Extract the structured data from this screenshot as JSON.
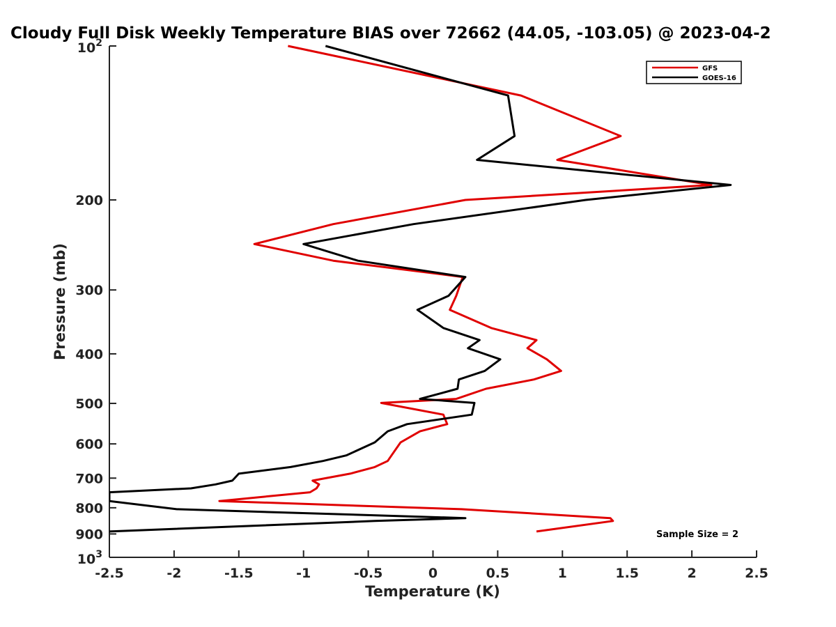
{
  "chart_data": {
    "type": "line",
    "title": "Cloudy Full Disk Weekly Temperature BIAS over 72662 (44.05, -103.05) @ 2023-04-2",
    "xlabel": "Temperature (K)",
    "ylabel": "Pressure (mb)",
    "xlim": [
      -2.5,
      2.5
    ],
    "ylim": [
      100,
      1000
    ],
    "y_scale": "log",
    "y_reversed": true,
    "grid": false,
    "legend_position": "top-right",
    "x_ticks": [
      {
        "value": -2.5,
        "label": "-2.5"
      },
      {
        "value": -2,
        "label": "-2"
      },
      {
        "value": -1.5,
        "label": "-1.5"
      },
      {
        "value": -1,
        "label": "-1"
      },
      {
        "value": -0.5,
        "label": "-0.5"
      },
      {
        "value": 0,
        "label": "0"
      },
      {
        "value": 0.5,
        "label": "0.5"
      },
      {
        "value": 1,
        "label": "1"
      },
      {
        "value": 1.5,
        "label": "1.5"
      },
      {
        "value": 2,
        "label": "2"
      },
      {
        "value": 2.5,
        "label": "2.5"
      }
    ],
    "y_ticks": [
      {
        "value": 100,
        "base": "10",
        "exp": "2"
      },
      {
        "value": 200,
        "label": "200"
      },
      {
        "value": 300,
        "label": "300"
      },
      {
        "value": 400,
        "label": "400"
      },
      {
        "value": 500,
        "label": "500"
      },
      {
        "value": 600,
        "label": "600"
      },
      {
        "value": 700,
        "label": "700"
      },
      {
        "value": 800,
        "label": "800"
      },
      {
        "value": 900,
        "label": "900"
      },
      {
        "value": 1000,
        "base": "10",
        "exp": "3"
      }
    ],
    "series": [
      {
        "name": "GFS",
        "color": "#e00000",
        "points": [
          [
            -1.12,
            100
          ],
          [
            0.68,
            125
          ],
          [
            1.45,
            150
          ],
          [
            0.96,
            167
          ],
          [
            2.15,
            187
          ],
          [
            0.25,
            200
          ],
          [
            -0.77,
            223
          ],
          [
            -1.38,
            244
          ],
          [
            -0.77,
            263
          ],
          [
            0.23,
            283
          ],
          [
            0.18,
            308
          ],
          [
            0.13,
            328
          ],
          [
            0.45,
            356
          ],
          [
            0.8,
            376
          ],
          [
            0.73,
            390
          ],
          [
            0.88,
            410
          ],
          [
            0.99,
            432
          ],
          [
            0.78,
            449
          ],
          [
            0.41,
            468
          ],
          [
            0.18,
            490
          ],
          [
            -0.4,
            499
          ],
          [
            0.08,
            526
          ],
          [
            0.11,
            549
          ],
          [
            -0.1,
            567
          ],
          [
            -0.25,
            596
          ],
          [
            -0.32,
            632
          ],
          [
            -0.35,
            648
          ],
          [
            -0.45,
            666
          ],
          [
            -0.64,
            686
          ],
          [
            -0.93,
            708
          ],
          [
            -0.88,
            720
          ],
          [
            -0.9,
            733
          ],
          [
            -0.95,
            746
          ],
          [
            -1.65,
            776
          ],
          [
            0.22,
            805
          ],
          [
            1.37,
            838
          ],
          [
            1.39,
            849
          ],
          [
            0.8,
            890
          ]
        ]
      },
      {
        "name": "GOES-16",
        "color": "#000000",
        "points": [
          [
            -0.83,
            100
          ],
          [
            0.58,
            125
          ],
          [
            0.63,
            150
          ],
          [
            0.34,
            167
          ],
          [
            2.3,
            187
          ],
          [
            1.18,
            200
          ],
          [
            -0.15,
            223
          ],
          [
            -1.0,
            244
          ],
          [
            -0.58,
            263
          ],
          [
            0.25,
            283
          ],
          [
            0.12,
            308
          ],
          [
            -0.12,
            328
          ],
          [
            0.08,
            356
          ],
          [
            0.36,
            376
          ],
          [
            0.27,
            390
          ],
          [
            0.52,
            410
          ],
          [
            0.4,
            432
          ],
          [
            0.2,
            449
          ],
          [
            0.19,
            468
          ],
          [
            -0.1,
            490
          ],
          [
            0.32,
            499
          ],
          [
            0.3,
            526
          ],
          [
            -0.2,
            549
          ],
          [
            -0.35,
            567
          ],
          [
            -0.45,
            596
          ],
          [
            -0.67,
            632
          ],
          [
            -0.85,
            648
          ],
          [
            -1.1,
            666
          ],
          [
            -1.5,
            686
          ],
          [
            -1.55,
            708
          ],
          [
            -1.68,
            720
          ],
          [
            -1.87,
            733
          ],
          [
            -2.5,
            746
          ],
          [
            -2.5,
            776
          ],
          [
            -1.98,
            805
          ],
          [
            0.25,
            838
          ],
          [
            -0.45,
            849
          ],
          [
            -2.5,
            890
          ]
        ]
      }
    ],
    "annotations": [
      {
        "text": "Sample Size = 2",
        "position": "bottom-right"
      }
    ]
  }
}
